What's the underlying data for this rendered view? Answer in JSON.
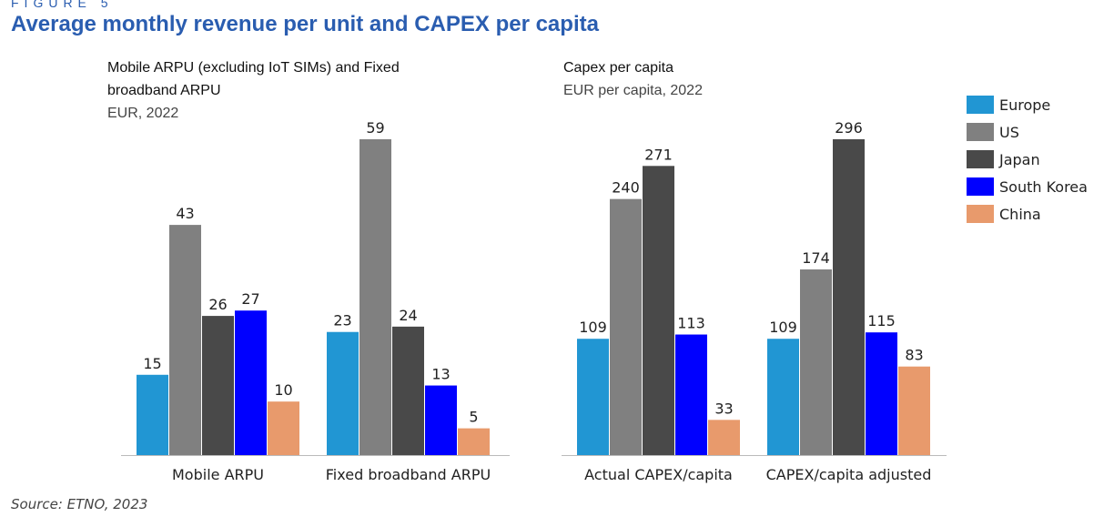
{
  "figure_label": "FIGURE 5",
  "title": "Average monthly revenue per unit and CAPEX per capita",
  "source": "Source: ETNO, 2023",
  "chart_data": [
    {
      "type": "bar",
      "title": "Mobile ARPU (excluding IoT SIMs) and Fixed broadband ARPU",
      "subtitle": "EUR, 2022",
      "categories": [
        "Mobile ARPU",
        "Fixed broadband ARPU"
      ],
      "series": [
        {
          "name": "Europe",
          "color": "#2196d3",
          "values": [
            15,
            23
          ]
        },
        {
          "name": "US",
          "color": "#808080",
          "values": [
            43,
            59
          ]
        },
        {
          "name": "Japan",
          "color": "#494949",
          "values": [
            26,
            24
          ]
        },
        {
          "name": "South Korea",
          "color": "#0000ff",
          "values": [
            27,
            13
          ]
        },
        {
          "name": "China",
          "color": "#e89a6c",
          "values": [
            10,
            5
          ]
        }
      ],
      "ylim": [
        0,
        59
      ]
    },
    {
      "type": "bar",
      "title": "Capex per capita",
      "subtitle": "EUR per capita, 2022",
      "categories": [
        "Actual CAPEX/capita",
        "CAPEX/capita adjusted"
      ],
      "series": [
        {
          "name": "Europe",
          "color": "#2196d3",
          "values": [
            109,
            109
          ]
        },
        {
          "name": "US",
          "color": "#808080",
          "values": [
            240,
            174
          ]
        },
        {
          "name": "Japan",
          "color": "#494949",
          "values": [
            271,
            296
          ]
        },
        {
          "name": "South Korea",
          "color": "#0000ff",
          "values": [
            113,
            115
          ]
        },
        {
          "name": "China",
          "color": "#e89a6c",
          "values": [
            33,
            83
          ]
        }
      ],
      "ylim": [
        0,
        296
      ]
    }
  ]
}
